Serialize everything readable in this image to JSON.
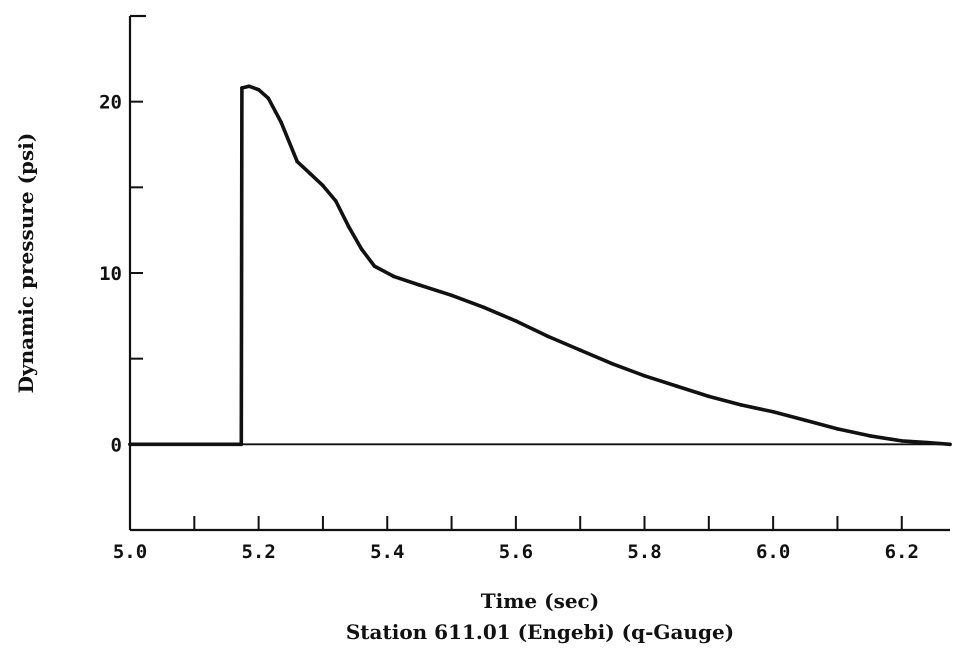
{
  "chart_data": {
    "type": "line",
    "title": "",
    "xlabel": "Time (sec)",
    "ylabel": "Dynamic pressure (psi)",
    "caption": "Station 611.01 (Engebi) (q-Gauge)",
    "xlim": [
      5.0,
      6.275
    ],
    "ylim": [
      -5,
      25
    ],
    "x_ticks": [
      5.0,
      5.2,
      5.4,
      5.6,
      5.8,
      6.0,
      6.2
    ],
    "x_tick_labels": [
      "5.0",
      "5.2",
      "5.4",
      "5.6",
      "5.8",
      "6.0",
      "6.2"
    ],
    "x_minor_ticks": [
      5.1,
      5.3,
      5.5,
      5.7,
      5.9,
      6.1
    ],
    "y_ticks": [
      0,
      10,
      20
    ],
    "y_tick_labels": [
      "0",
      "10",
      "20"
    ],
    "y_minor_ticks": [
      -5,
      5,
      15,
      25
    ],
    "grid": false,
    "reference_line_y": 0,
    "series": [
      {
        "x": [
          5.0,
          5.173,
          5.174,
          5.185,
          5.2,
          5.215,
          5.235,
          5.26,
          5.28,
          5.3,
          5.32,
          5.34,
          5.36,
          5.38,
          5.41,
          5.45,
          5.5,
          5.55,
          5.6,
          5.65,
          5.7,
          5.75,
          5.8,
          5.85,
          5.9,
          5.95,
          6.0,
          6.05,
          6.1,
          6.15,
          6.2,
          6.24,
          6.275
        ],
        "y": [
          0,
          0,
          20.8,
          20.9,
          20.7,
          20.2,
          18.8,
          16.5,
          15.8,
          15.1,
          14.2,
          12.7,
          11.4,
          10.4,
          9.8,
          9.3,
          8.7,
          8.0,
          7.2,
          6.3,
          5.5,
          4.7,
          4.0,
          3.4,
          2.8,
          2.3,
          1.9,
          1.4,
          0.9,
          0.5,
          0.2,
          0.1,
          0.0
        ]
      }
    ]
  }
}
